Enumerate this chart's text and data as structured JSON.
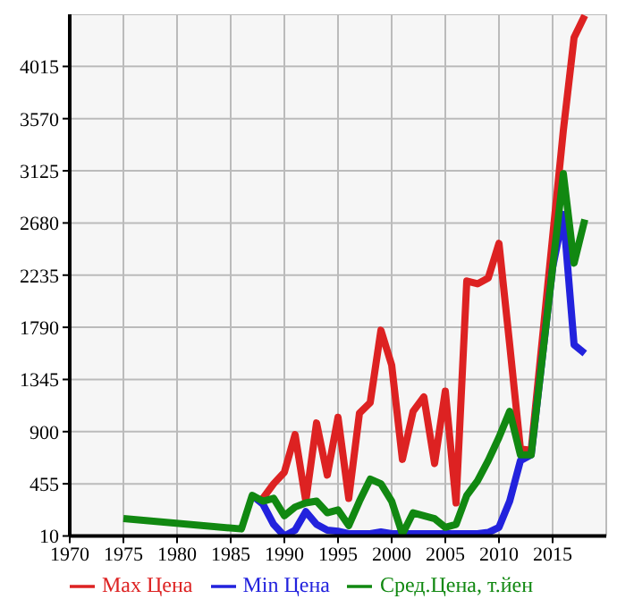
{
  "chart_data": {
    "type": "line",
    "xlim": [
      1970,
      2020
    ],
    "xticks": [
      1970,
      1975,
      1980,
      1985,
      1990,
      1995,
      2000,
      2005,
      2010,
      2015
    ],
    "ylim": [
      10,
      4460
    ],
    "yticks": [
      10,
      455,
      900,
      1345,
      1790,
      2235,
      2680,
      3125,
      3570,
      4015
    ],
    "grid": true,
    "legend": "bottom",
    "marker": "none",
    "line_style": "solid",
    "series": [
      {
        "name": "Max Цена",
        "color": "#dd2222",
        "x": [
          1988,
          1989,
          1990,
          1991,
          1992,
          1993,
          1994,
          1995,
          1996,
          1997,
          1998,
          1999,
          2000,
          2001,
          2002,
          2003,
          2004,
          2005,
          2006,
          2007,
          2008,
          2009,
          2010,
          2011,
          2012,
          2013,
          2014,
          2015,
          2016,
          2017,
          2018
        ],
        "values": [
          331,
          455,
          554,
          875,
          307,
          974,
          529,
          1023,
          331,
          1058,
          1147,
          1765,
          1468,
          663,
          1073,
          1197,
          628,
          1246,
          292,
          2185,
          2161,
          2210,
          2506,
          1641,
          752,
          740,
          1650,
          2560,
          3470,
          4262,
          4450
        ]
      },
      {
        "name": "Min Цена",
        "color": "#2222dd",
        "x": [
          1987,
          1988,
          1989,
          1990,
          1991,
          1992,
          1993,
          1994,
          1995,
          1996,
          1997,
          1998,
          1999,
          2000,
          2001,
          2002,
          2003,
          2004,
          2005,
          2006,
          2007,
          2008,
          2009,
          2010,
          2011,
          2012,
          2013,
          2014,
          2015,
          2016,
          2017,
          2018
        ],
        "values": [
          356,
          282,
          109,
          10,
          59,
          218,
          109,
          59,
          50,
          30,
          30,
          30,
          45,
          30,
          30,
          30,
          30,
          30,
          30,
          30,
          30,
          30,
          40,
          84,
          307,
          653,
          702,
          1500,
          2300,
          2753,
          1641,
          1567
        ]
      },
      {
        "name": "Сред.Цена, т.йен",
        "color": "#118811",
        "x": [
          1975,
          1986,
          1987,
          1988,
          1989,
          1990,
          1991,
          1992,
          1993,
          1994,
          1995,
          1996,
          1997,
          1998,
          1999,
          2000,
          2001,
          2002,
          2003,
          2004,
          2005,
          2006,
          2007,
          2008,
          2009,
          2010,
          2011,
          2012,
          2013,
          2014,
          2015,
          2016,
          2017,
          2018
        ],
        "values": [
          158,
          70,
          356,
          307,
          331,
          183,
          257,
          292,
          307,
          208,
          232,
          99,
          307,
          495,
          455,
          307,
          25,
          208,
          183,
          158,
          84,
          109,
          356,
          480,
          653,
          851,
          1073,
          702,
          702,
          1500,
          2300,
          3100,
          2337,
          2710
        ]
      }
    ]
  }
}
